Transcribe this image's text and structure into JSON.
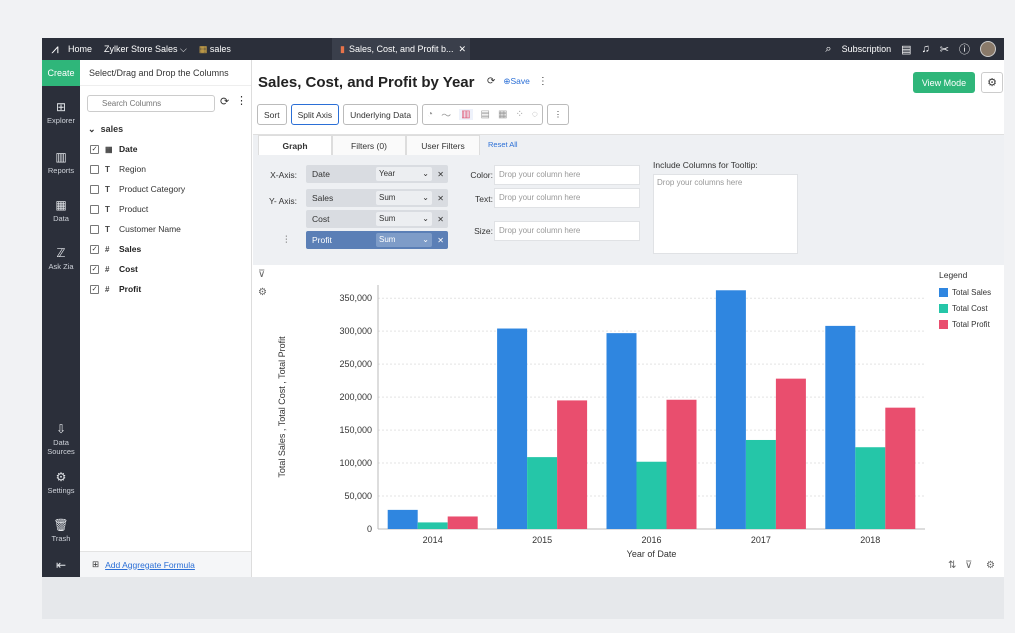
{
  "topbar": {
    "home": "Home",
    "workspace": "Zylker Store Sales ⌵",
    "table_tab": "sales",
    "report_tab": "Sales, Cost, and Profit b...",
    "subscription": "Subscription"
  },
  "rail": {
    "create": "Create",
    "items": [
      "Explorer",
      "Reports",
      "Data",
      "Ask Zia",
      "Data Sources",
      "Settings",
      "Trash"
    ]
  },
  "columns": {
    "header": "Select/Drag and Drop the Columns",
    "search_placeholder": "Search Columns",
    "table": "sales",
    "items": [
      {
        "label": "Date",
        "type": "▦",
        "checked": true
      },
      {
        "label": "Region",
        "type": "T",
        "checked": false
      },
      {
        "label": "Product Category",
        "type": "T",
        "checked": false
      },
      {
        "label": "Product",
        "type": "T",
        "checked": false
      },
      {
        "label": "Customer Name",
        "type": "T",
        "checked": false
      },
      {
        "label": "Sales",
        "type": "#",
        "checked": true
      },
      {
        "label": "Cost",
        "type": "#",
        "checked": true
      },
      {
        "label": "Profit",
        "type": "#",
        "checked": true
      }
    ],
    "add_formula": "Add Aggregate Formula"
  },
  "report": {
    "title": "Sales, Cost, and Profit by Year",
    "save": "Save",
    "view_mode": "View Mode"
  },
  "toolbar": {
    "sort": "Sort",
    "split_axis": "Split Axis",
    "underlying": "Underlying Data"
  },
  "tabs": {
    "graph": "Graph",
    "filters": "Filters (0)",
    "user_filters": "User Filters",
    "reset": "Reset All"
  },
  "config": {
    "xaxis_label": "X-Axis:",
    "yaxis_label": "Y- Axis:",
    "color_label": "Color:",
    "text_label": "Text:",
    "size_label": "Size:",
    "x_field": {
      "name": "Date",
      "agg": "Year"
    },
    "y_fields": [
      {
        "name": "Sales",
        "agg": "Sum"
      },
      {
        "name": "Cost",
        "agg": "Sum"
      },
      {
        "name": "Profit",
        "agg": "Sum"
      }
    ],
    "drop_column": "Drop your column here",
    "tooltip_label": "Include Columns for Tooltip:",
    "tooltip_placeholder": "Drop your columns here"
  },
  "chart_data": {
    "type": "bar",
    "categories": [
      "2014",
      "2015",
      "2016",
      "2017",
      "2018"
    ],
    "series": [
      {
        "name": "Total Sales",
        "values": [
          29000,
          304000,
          297000,
          362000,
          308000
        ],
        "color": "#2f86e0"
      },
      {
        "name": "Total Cost",
        "values": [
          10000,
          109000,
          102000,
          135000,
          124000
        ],
        "color": "#25c6a8"
      },
      {
        "name": "Total Profit",
        "values": [
          19000,
          195000,
          196000,
          228000,
          184000
        ],
        "color": "#e94e6e"
      }
    ],
    "xlabel": "Year of Date",
    "ylabel": "Total Sales , Total Cost , Total Profit",
    "ylim": [
      0,
      370000
    ],
    "yticks": [
      0,
      50000,
      100000,
      150000,
      200000,
      250000,
      300000,
      350000
    ],
    "ytick_labels": [
      "0",
      "50,000",
      "100,000",
      "150,000",
      "200,000",
      "250,000",
      "300,000",
      "350,000"
    ],
    "legend_title": "Legend",
    "legend_position": "right",
    "grid": true
  }
}
